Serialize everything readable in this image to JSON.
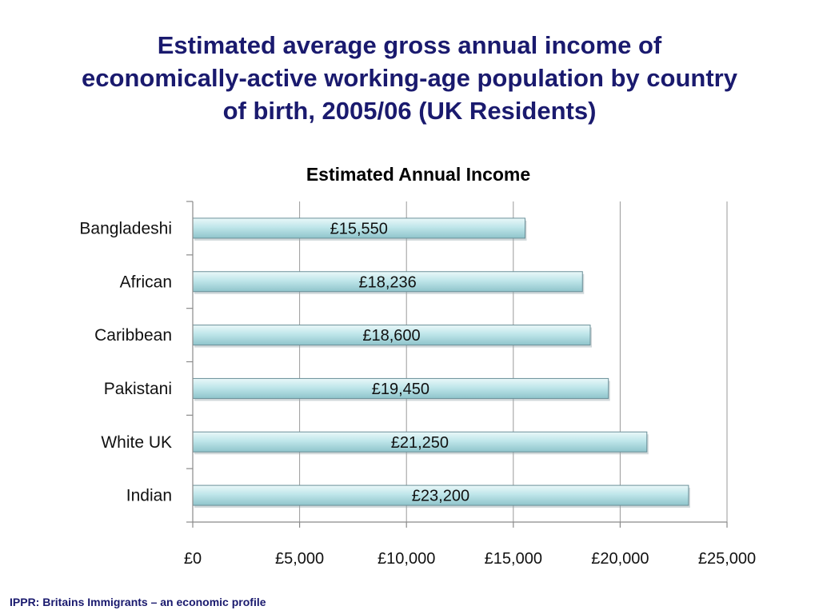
{
  "slide": {
    "title_lines": [
      "Estimated average gross annual income of",
      "economically-active working-age population by country",
      "of birth, 2005/06 (UK Residents)"
    ],
    "footer": "IPPR: Britains Immigrants – an economic profile"
  },
  "chart_data": {
    "type": "bar",
    "orientation": "horizontal",
    "title": "Estimated Annual Income",
    "categories": [
      "Bangladeshi",
      "African",
      "Caribbean",
      "Pakistani",
      "White UK",
      "Indian"
    ],
    "values": [
      15550,
      18236,
      18600,
      19450,
      21250,
      23200
    ],
    "data_labels": [
      "£15,550",
      "£18,236",
      "£18,600",
      "£19,450",
      "£21,250",
      "£23,200"
    ],
    "xlim": [
      0,
      25000
    ],
    "x_ticks": [
      0,
      5000,
      10000,
      15000,
      20000,
      25000
    ],
    "x_tick_labels": [
      "£0",
      "£5,000",
      "£10,000",
      "£15,000",
      "£20,000",
      "£25,000"
    ],
    "xlabel": "",
    "ylabel": "",
    "grid": true,
    "legend": "none",
    "bar_color": "#bfe6ea"
  }
}
